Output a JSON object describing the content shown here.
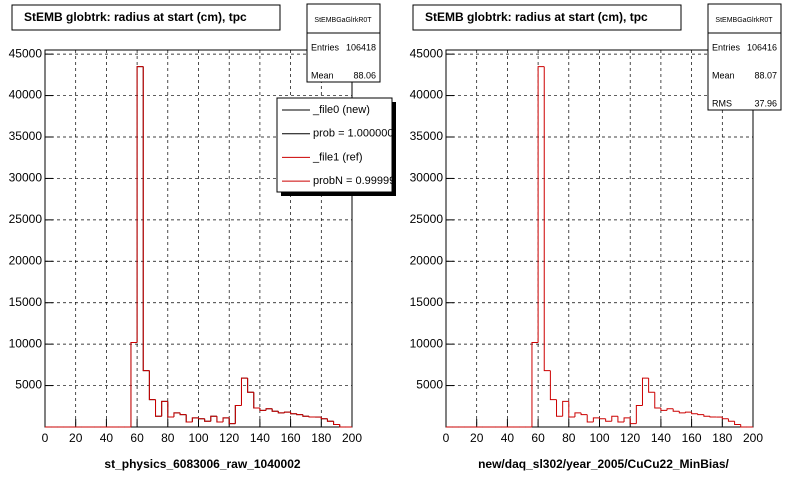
{
  "chart_data": [
    {
      "type": "histogram",
      "title": "StEMB globtrk: radius at start (cm), tpc",
      "x_label": "st_physics_6083006_raw_1040002",
      "bins": [
        0,
        4,
        8,
        12,
        16,
        20,
        24,
        28,
        32,
        36,
        40,
        44,
        48,
        52,
        56,
        60,
        64,
        68,
        72,
        76,
        80,
        84,
        88,
        92,
        96,
        100,
        104,
        108,
        112,
        116,
        120,
        124,
        128,
        132,
        136,
        140,
        144,
        148,
        152,
        156,
        160,
        164,
        168,
        172,
        176,
        180,
        184,
        188,
        192,
        196,
        200
      ],
      "series": [
        {
          "name": "_file0 (new)",
          "color": "#000000",
          "values": [
            0,
            0,
            0,
            0,
            0,
            0,
            0,
            0,
            0,
            0,
            0,
            0,
            0,
            0,
            10200,
            43500,
            6800,
            3300,
            1300,
            3100,
            1200,
            1700,
            1500,
            600,
            1100,
            1000,
            700,
            1300,
            600,
            1100,
            400,
            2600,
            5900,
            4200,
            2300,
            2000,
            2200,
            1900,
            1700,
            1800,
            1600,
            1500,
            1300,
            1200,
            1200,
            1000,
            700,
            300,
            0,
            0
          ]
        },
        {
          "name": "_file1 (ref)",
          "color": "#cc0000",
          "values": [
            0,
            0,
            0,
            0,
            0,
            0,
            0,
            0,
            0,
            0,
            0,
            0,
            0,
            0,
            10200,
            43500,
            6800,
            3300,
            1300,
            3100,
            1200,
            1700,
            1500,
            600,
            1100,
            1000,
            700,
            1300,
            600,
            1100,
            400,
            2600,
            5900,
            4200,
            2300,
            2000,
            2200,
            1900,
            1700,
            1800,
            1600,
            1500,
            1300,
            1200,
            1200,
            1000,
            700,
            300,
            0,
            0
          ]
        }
      ],
      "legend_notes": [
        "prob = 1.000000",
        "probN = 0.99999"
      ],
      "xlim": [
        0,
        200
      ],
      "ylim": [
        0,
        45500
      ],
      "xticks": [
        0,
        20,
        40,
        60,
        80,
        100,
        120,
        140,
        160,
        180,
        200
      ],
      "yticks": [
        5000,
        10000,
        15000,
        20000,
        25000,
        30000,
        35000,
        40000,
        45000
      ],
      "grid": true,
      "stats": {
        "title": "StEMBGaGlrkR0T",
        "rows": [
          {
            "label": "Entries",
            "value": 106418
          },
          {
            "label": "Mean",
            "value": 88.06
          }
        ]
      }
    },
    {
      "type": "histogram",
      "title": "StEMB globtrk: radius at start (cm), tpc",
      "x_label": "new/daq_sl302/year_2005/CuCu22_MinBias/",
      "bins": [
        0,
        4,
        8,
        12,
        16,
        20,
        24,
        28,
        32,
        36,
        40,
        44,
        48,
        52,
        56,
        60,
        64,
        68,
        72,
        76,
        80,
        84,
        88,
        92,
        96,
        100,
        104,
        108,
        112,
        116,
        120,
        124,
        128,
        132,
        136,
        140,
        144,
        148,
        152,
        156,
        160,
        164,
        168,
        172,
        176,
        180,
        184,
        188,
        192,
        196,
        200
      ],
      "series": [
        {
          "color": "#cc0000",
          "values": [
            0,
            0,
            0,
            0,
            0,
            0,
            0,
            0,
            0,
            0,
            0,
            0,
            0,
            0,
            10200,
            43500,
            6800,
            3300,
            1300,
            3100,
            1200,
            1700,
            1500,
            600,
            1100,
            1000,
            700,
            1300,
            600,
            1100,
            400,
            2600,
            5900,
            4200,
            2300,
            2000,
            2200,
            1900,
            1700,
            1800,
            1600,
            1500,
            1300,
            1200,
            1200,
            1000,
            700,
            300,
            0,
            0
          ]
        }
      ],
      "xlim": [
        0,
        200
      ],
      "ylim": [
        0,
        45500
      ],
      "xticks": [
        0,
        20,
        40,
        60,
        80,
        100,
        120,
        140,
        160,
        180,
        200
      ],
      "yticks": [
        5000,
        10000,
        15000,
        20000,
        25000,
        30000,
        35000,
        40000,
        45000
      ],
      "grid": true,
      "stats": {
        "title": "StEMBGaGlrkR0T",
        "rows": [
          {
            "label": "Entries",
            "value": 106416
          },
          {
            "label": "Mean",
            "value": 88.07
          },
          {
            "label": "RMS",
            "value": 37.96
          }
        ]
      }
    }
  ]
}
